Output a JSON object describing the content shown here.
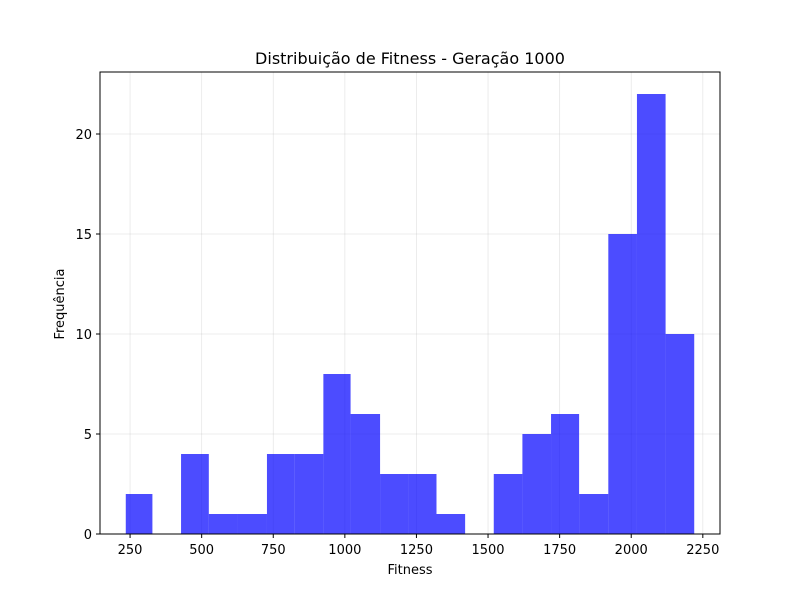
{
  "chart_data": {
    "type": "bar",
    "title": "Distribuição de Fitness - Geração 1000",
    "xlabel": "Fitness",
    "ylabel": "Frequência",
    "bin_edges": [
      235,
      328,
      428,
      525,
      625,
      728,
      825,
      925,
      1020,
      1123,
      1222,
      1320,
      1420,
      1520,
      1620,
      1720,
      1818,
      1920,
      2020,
      2120,
      2220
    ],
    "values": [
      2,
      0,
      4,
      1,
      1,
      4,
      4,
      8,
      6,
      3,
      3,
      1,
      0,
      3,
      5,
      6,
      2,
      15,
      22,
      10
    ],
    "xlim": [
      145,
      2310
    ],
    "ylim": [
      0,
      23.1
    ],
    "xticks": [
      250,
      500,
      750,
      1000,
      1250,
      1500,
      1750,
      2000,
      2250
    ],
    "yticks": [
      0,
      5,
      10,
      15,
      20
    ],
    "bar_color": "#0000ff",
    "bar_opacity": 0.7,
    "grid": true
  }
}
